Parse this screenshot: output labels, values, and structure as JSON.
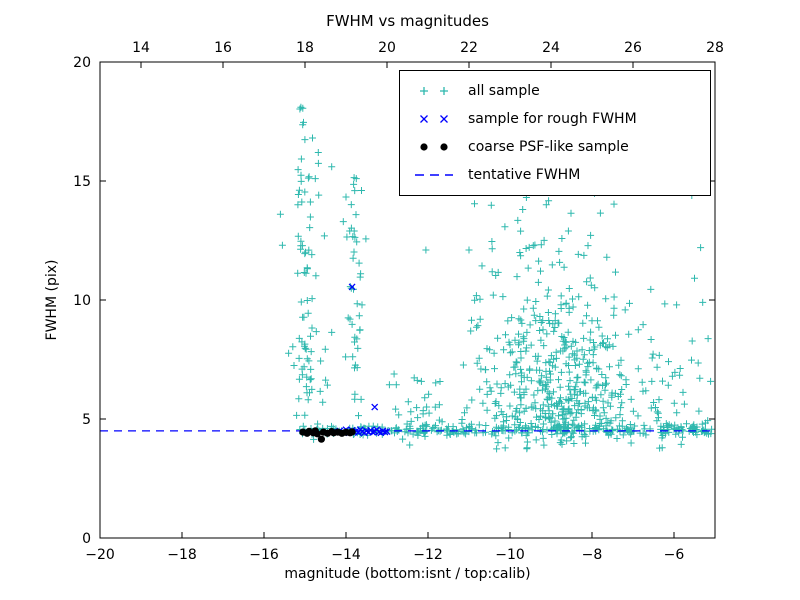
{
  "chart_data": {
    "type": "scatter",
    "title": "FWHM vs magnitudes",
    "xlabel": "magnitude (bottom:isnt / top:calib)",
    "ylabel": "FWHM (pix)",
    "xlim": [
      -20,
      -5
    ],
    "ylim": [
      0,
      20
    ],
    "top_xlim": [
      13,
      28
    ],
    "xticks": [
      -20,
      -18,
      -16,
      -14,
      -12,
      -10,
      -8,
      -6
    ],
    "yticks": [
      0,
      5,
      10,
      15,
      20
    ],
    "top_xticks": [
      14,
      16,
      18,
      20,
      22,
      24,
      26,
      28
    ],
    "grid": false,
    "legend_position": "upper right",
    "tentative_fwhm_y": 4.5,
    "series": [
      {
        "name": "all sample",
        "marker": "plus",
        "color": "#2eb8ae",
        "clusters": [
          {
            "name": "band",
            "count": 270,
            "seed": 1,
            "x": {
              "dist": "uniform",
              "min": -15.2,
              "max": -5.05
            },
            "y": {
              "dist": "normal",
              "mean": 4.52,
              "sd": 0.12
            }
          },
          {
            "name": "band-wide",
            "count": 60,
            "seed": 2,
            "x": {
              "dist": "uniform",
              "min": -12.5,
              "max": -5.1
            },
            "y": {
              "dist": "normal",
              "mean": 4.7,
              "sd": 0.35
            }
          },
          {
            "name": "spire-15",
            "count": 60,
            "seed": 3,
            "x": {
              "dist": "normal",
              "mean": -14.95,
              "sd": 0.14
            },
            "y": {
              "dist": "uniform",
              "min": 5.0,
              "max": 18.2
            }
          },
          {
            "name": "spire-15-low",
            "count": 25,
            "seed": 4,
            "x": {
              "dist": "normal",
              "mean": -14.85,
              "sd": 0.2
            },
            "y": {
              "dist": "normal",
              "mean": 7.5,
              "sd": 1.2
            }
          },
          {
            "name": "spire-14",
            "count": 45,
            "seed": 5,
            "x": {
              "dist": "normal",
              "mean": -13.8,
              "sd": 0.13
            },
            "y": {
              "dist": "uniform",
              "min": 5.0,
              "max": 15.3
            }
          },
          {
            "name": "cloud",
            "count": 430,
            "seed": 6,
            "x": {
              "dist": "normal",
              "mean": -8.8,
              "sd": 1.05
            },
            "y": {
              "dist": "halfnormal",
              "base": 4.6,
              "sd": 3.0,
              "max": 15.5
            }
          },
          {
            "name": "cloud-upper",
            "count": 60,
            "seed": 7,
            "x": {
              "dist": "normal",
              "mean": -9.3,
              "sd": 0.9
            },
            "y": {
              "dist": "uniform",
              "min": 9.0,
              "max": 15.0
            }
          },
          {
            "name": "below-band",
            "count": 20,
            "seed": 10,
            "x": {
              "dist": "uniform",
              "min": -10.5,
              "max": -6.0
            },
            "y": {
              "dist": "uniform",
              "min": 3.7,
              "max": 4.3
            }
          },
          {
            "name": "sparse-right",
            "count": 25,
            "seed": 8,
            "x": {
              "dist": "uniform",
              "min": -6.6,
              "max": -5.1
            },
            "y": {
              "dist": "halfnormal",
              "base": 4.5,
              "sd": 3.0,
              "max": 13.0
            }
          },
          {
            "name": "sparse-mid",
            "count": 18,
            "seed": 9,
            "x": {
              "dist": "uniform",
              "min": -13.3,
              "max": -11.5
            },
            "y": {
              "dist": "halfnormal",
              "base": 4.6,
              "sd": 1.5,
              "max": 9.0
            }
          }
        ],
        "extra_points": [
          [
            -15.6,
            13.6
          ],
          [
            -15.55,
            12.3
          ],
          [
            -15.1,
            18.1
          ],
          [
            -14.35,
            15.6
          ],
          [
            -13.75,
            15.1
          ],
          [
            -12.05,
            12.1
          ],
          [
            -11.0,
            12.1
          ],
          [
            -5.35,
            12.2
          ],
          [
            -5.3,
            9.9
          ],
          [
            -5.6,
            4.6
          ]
        ]
      },
      {
        "name": "sample for rough FWHM",
        "marker": "x",
        "color": "#0000ff",
        "points": [
          [
            -14.2,
            4.45
          ],
          [
            -14.15,
            4.5
          ],
          [
            -14.05,
            4.42
          ],
          [
            -14.0,
            4.55
          ],
          [
            -13.95,
            4.48
          ],
          [
            -13.9,
            4.44
          ],
          [
            -13.85,
            4.52
          ],
          [
            -13.8,
            4.46
          ],
          [
            -13.75,
            4.5
          ],
          [
            -13.7,
            4.43
          ],
          [
            -13.65,
            4.55
          ],
          [
            -13.6,
            4.47
          ],
          [
            -13.55,
            4.42
          ],
          [
            -13.5,
            4.5
          ],
          [
            -13.45,
            4.45
          ],
          [
            -13.4,
            4.53
          ],
          [
            -13.35,
            4.44
          ],
          [
            -13.3,
            4.48
          ],
          [
            -13.25,
            4.55
          ],
          [
            -13.2,
            4.46
          ],
          [
            -13.15,
            4.42
          ],
          [
            -13.1,
            4.5
          ],
          [
            -13.05,
            4.45
          ],
          [
            -13.0,
            4.47
          ],
          [
            -13.3,
            5.5
          ],
          [
            -13.85,
            10.55
          ]
        ]
      },
      {
        "name": "coarse PSF-like sample",
        "marker": "dot",
        "color": "#000000",
        "points": [
          [
            -15.05,
            4.45
          ],
          [
            -14.95,
            4.4
          ],
          [
            -14.9,
            4.48
          ],
          [
            -14.8,
            4.42
          ],
          [
            -14.75,
            4.5
          ],
          [
            -14.7,
            4.38
          ],
          [
            -14.6,
            4.15
          ],
          [
            -14.55,
            4.45
          ],
          [
            -14.45,
            4.4
          ],
          [
            -14.35,
            4.47
          ],
          [
            -14.3,
            4.42
          ],
          [
            -14.2,
            4.45
          ],
          [
            -14.1,
            4.4
          ],
          [
            -14.0,
            4.44
          ],
          [
            -13.9,
            4.42
          ],
          [
            -13.85,
            4.46
          ]
        ]
      },
      {
        "name": "tentative FWHM",
        "type": "hline",
        "linestyle": "dashed",
        "color": "#0000ff",
        "y": 4.5
      }
    ]
  }
}
